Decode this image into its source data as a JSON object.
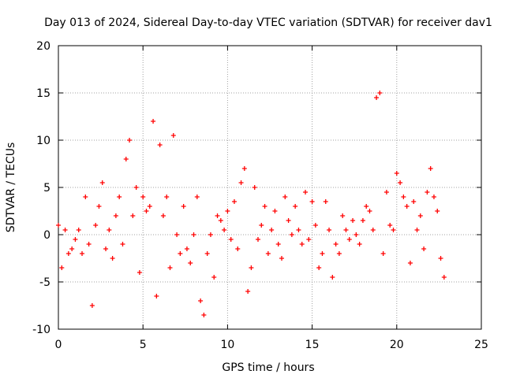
{
  "chart_data": {
    "type": "scatter",
    "title": "Day 013 of 2024, Sidereal Day-to-day VTEC variation (SDTVAR) for receiver dav1",
    "xlabel": "GPS time / hours",
    "ylabel": "SDTVAR / TECUs",
    "xlim": [
      0,
      25
    ],
    "ylim": [
      -10,
      20
    ],
    "xticks": [
      0,
      5,
      10,
      15,
      20,
      25
    ],
    "yticks": [
      -10,
      -5,
      0,
      5,
      10,
      15,
      20
    ],
    "grid": true,
    "marker": "+",
    "color": "#ff0000",
    "series": [
      {
        "name": "SDTVAR dav1",
        "x": [
          0.0,
          0.2,
          0.4,
          0.6,
          0.8,
          1.0,
          1.2,
          1.4,
          1.6,
          1.8,
          2.0,
          2.2,
          2.4,
          2.6,
          2.8,
          3.0,
          3.2,
          3.4,
          3.6,
          3.8,
          4.0,
          4.2,
          4.4,
          4.6,
          4.8,
          5.0,
          5.2,
          5.4,
          5.6,
          5.8,
          6.0,
          6.2,
          6.4,
          6.6,
          6.8,
          7.0,
          7.2,
          7.4,
          7.6,
          7.8,
          8.0,
          8.2,
          8.4,
          8.6,
          8.8,
          9.0,
          9.2,
          9.4,
          9.6,
          9.8,
          10.0,
          10.2,
          10.4,
          10.6,
          10.8,
          11.0,
          11.2,
          11.4,
          11.6,
          11.8,
          12.0,
          12.2,
          12.4,
          12.6,
          12.8,
          13.0,
          13.2,
          13.4,
          13.6,
          13.8,
          14.0,
          14.2,
          14.4,
          14.6,
          14.8,
          15.0,
          15.2,
          15.4,
          15.6,
          15.8,
          16.0,
          16.2,
          16.4,
          16.6,
          16.8,
          17.0,
          17.2,
          17.4,
          17.6,
          17.8,
          18.0,
          18.2,
          18.4,
          18.6,
          18.8,
          19.0,
          19.2,
          19.4,
          19.6,
          19.8,
          20.0,
          20.2,
          20.4,
          20.6,
          20.8,
          21.0,
          21.2,
          21.4,
          21.6,
          21.8,
          22.0,
          22.2,
          22.4,
          22.6,
          22.8
        ],
        "y": [
          1.0,
          -3.5,
          0.5,
          -2.0,
          -1.5,
          -0.5,
          0.5,
          -2.0,
          4.0,
          -1.0,
          -7.5,
          1.0,
          3.0,
          5.5,
          -1.5,
          0.5,
          -2.5,
          2.0,
          4.0,
          -1.0,
          8.0,
          10.0,
          2.0,
          5.0,
          -4.0,
          4.0,
          2.5,
          3.0,
          12.0,
          -6.5,
          9.5,
          2.0,
          4.0,
          -3.5,
          10.5,
          0.0,
          -2.0,
          3.0,
          -1.5,
          -3.0,
          0.0,
          4.0,
          -7.0,
          -8.5,
          -2.0,
          0.0,
          -4.5,
          2.0,
          1.5,
          0.5,
          2.5,
          -0.5,
          3.5,
          -1.5,
          5.5,
          7.0,
          -6.0,
          -3.5,
          5.0,
          -0.5,
          1.0,
          3.0,
          -2.0,
          0.5,
          2.5,
          -1.0,
          -2.5,
          4.0,
          1.5,
          0.0,
          3.0,
          0.5,
          -1.0,
          4.5,
          -0.5,
          3.5,
          1.0,
          -3.5,
          -2.0,
          3.5,
          0.5,
          -4.5,
          -1.0,
          -2.0,
          2.0,
          0.5,
          -0.5,
          1.5,
          0.0,
          -1.0,
          1.5,
          3.0,
          2.5,
          0.5,
          14.5,
          15.0,
          -2.0,
          4.5,
          1.0,
          0.5,
          6.5,
          5.5,
          4.0,
          3.0,
          -3.0,
          3.5,
          0.5,
          2.0,
          -1.5,
          4.5,
          7.0,
          4.0,
          2.5,
          -2.5,
          -4.5
        ]
      }
    ]
  }
}
